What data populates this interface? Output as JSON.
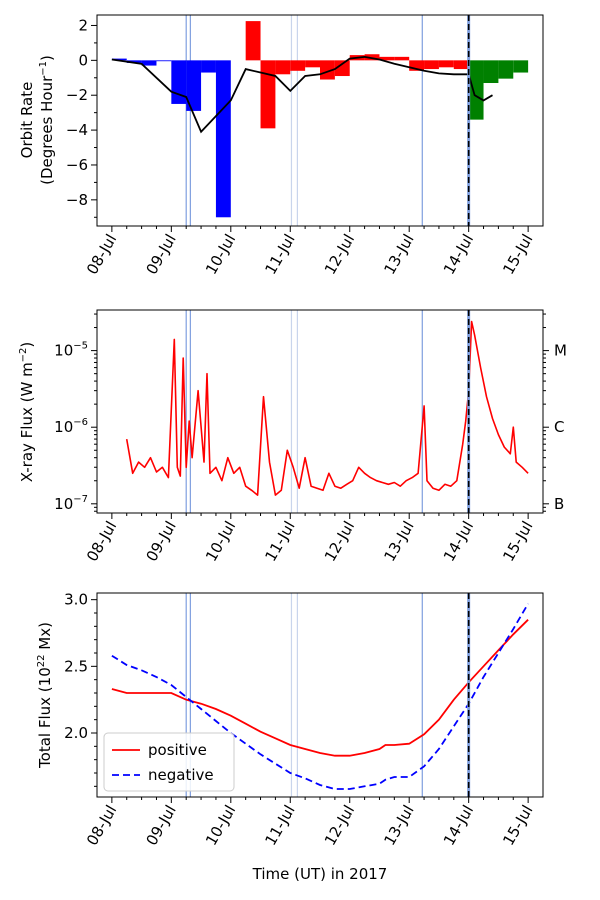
{
  "chart_data": [
    {
      "type": "bar",
      "ylabel_line1": "Orbit Rate",
      "ylabel_line2": "(Degrees Hour",
      "ylabel_sup": "−1",
      "ylabel_close": ")",
      "xtick_labels": [
        "08-Jul",
        "09-Jul",
        "10-Jul",
        "11-Jul",
        "12-Jul",
        "13-Jul",
        "14-Jul",
        "15-Jul"
      ],
      "ytick_labels": [
        "2",
        "0",
        "−2",
        "−4",
        "−6",
        "−8"
      ],
      "ytick_values": [
        2,
        0,
        -2,
        -4,
        -6,
        -8
      ],
      "xlim": [
        7.75,
        15.25
      ],
      "ylim": [
        -9.5,
        2.6
      ],
      "colors": {
        "blue": "#0000ff",
        "red": "#ff0000",
        "green": "#008000",
        "line": "#000000"
      },
      "bars": [
        {
          "x0": 8.0,
          "x1": 8.25,
          "value": 0.1,
          "color": "blue"
        },
        {
          "x0": 8.25,
          "x1": 8.5,
          "value": -0.15,
          "color": "blue"
        },
        {
          "x0": 8.5,
          "x1": 8.75,
          "value": -0.3,
          "color": "blue"
        },
        {
          "x0": 8.75,
          "x1": 9.0,
          "value": -0.05,
          "color": "blue"
        },
        {
          "x0": 9.0,
          "x1": 9.25,
          "value": -2.5,
          "color": "blue"
        },
        {
          "x0": 9.25,
          "x1": 9.5,
          "value": -2.9,
          "color": "blue"
        },
        {
          "x0": 9.5,
          "x1": 9.75,
          "value": -0.7,
          "color": "blue"
        },
        {
          "x0": 9.75,
          "x1": 10.0,
          "value": -9.0,
          "color": "blue"
        },
        {
          "x0": 10.25,
          "x1": 10.5,
          "value": 2.25,
          "color": "red"
        },
        {
          "x0": 10.5,
          "x1": 10.75,
          "value": -3.9,
          "color": "red"
        },
        {
          "x0": 10.75,
          "x1": 11.0,
          "value": -0.8,
          "color": "red"
        },
        {
          "x0": 11.0,
          "x1": 11.25,
          "value": -0.6,
          "color": "red"
        },
        {
          "x0": 11.25,
          "x1": 11.5,
          "value": -0.4,
          "color": "red"
        },
        {
          "x0": 11.5,
          "x1": 11.75,
          "value": -1.1,
          "color": "red"
        },
        {
          "x0": 11.75,
          "x1": 12.0,
          "value": -0.9,
          "color": "red"
        },
        {
          "x0": 12.0,
          "x1": 12.25,
          "value": 0.3,
          "color": "red"
        },
        {
          "x0": 12.25,
          "x1": 12.5,
          "value": 0.35,
          "color": "red"
        },
        {
          "x0": 12.5,
          "x1": 12.75,
          "value": 0.2,
          "color": "red"
        },
        {
          "x0": 12.75,
          "x1": 13.0,
          "value": 0.2,
          "color": "red"
        },
        {
          "x0": 13.0,
          "x1": 13.25,
          "value": -0.6,
          "color": "red"
        },
        {
          "x0": 13.25,
          "x1": 13.5,
          "value": -0.5,
          "color": "red"
        },
        {
          "x0": 13.5,
          "x1": 13.75,
          "value": -0.4,
          "color": "red"
        },
        {
          "x0": 13.75,
          "x1": 14.0,
          "value": -0.5,
          "color": "red"
        },
        {
          "x0": 14.0,
          "x1": 14.25,
          "value": -3.4,
          "color": "green"
        },
        {
          "x0": 14.25,
          "x1": 14.5,
          "value": -1.3,
          "color": "green"
        },
        {
          "x0": 14.5,
          "x1": 14.75,
          "value": -1.05,
          "color": "green"
        },
        {
          "x0": 14.75,
          "x1": 15.0,
          "value": -0.7,
          "color": "green"
        }
      ],
      "line_x": [
        8.0,
        8.5,
        9.0,
        9.25,
        9.5,
        9.75,
        10.0,
        10.25,
        10.5,
        10.75,
        11.0,
        11.25,
        11.5,
        11.75,
        12.0,
        12.25,
        12.5,
        12.75,
        13.0,
        13.25,
        13.5,
        13.75,
        14.0,
        14.1,
        14.25,
        14.4
      ],
      "line_y": [
        0.05,
        -0.2,
        -1.8,
        -2.1,
        -4.1,
        -3.2,
        -2.3,
        -0.5,
        -0.7,
        -0.9,
        -1.75,
        -0.9,
        -0.8,
        -0.5,
        0.1,
        0.2,
        0.05,
        -0.2,
        -0.4,
        -0.6,
        -0.75,
        -0.8,
        -0.8,
        -2.0,
        -2.3,
        -2.0
      ]
    },
    {
      "type": "line",
      "yscale": "log",
      "ylabel": "X-ray Flux (W m",
      "ylabel_sup": "−2",
      "ylabel_close": ")",
      "xtick_labels": [
        "08-Jul",
        "09-Jul",
        "10-Jul",
        "11-Jul",
        "12-Jul",
        "13-Jul",
        "14-Jul",
        "15-Jul"
      ],
      "ytick_labels": [
        {
          "base": "10",
          "exp": "−5"
        },
        {
          "base": "10",
          "exp": "−6"
        },
        {
          "base": "10",
          "exp": "−7"
        }
      ],
      "right_labels": [
        {
          "label": "M",
          "value": 1e-05
        },
        {
          "label": "C",
          "value": 1e-06
        },
        {
          "label": "B",
          "value": 1e-07
        }
      ],
      "xlim": [
        7.75,
        15.25
      ],
      "ylim_log10": [
        -7.12,
        -4.47
      ],
      "color": "#ff0000",
      "series_x": [
        8.25,
        8.35,
        8.45,
        8.55,
        8.65,
        8.75,
        8.85,
        8.95,
        9.05,
        9.1,
        9.15,
        9.2,
        9.25,
        9.3,
        9.35,
        9.45,
        9.55,
        9.6,
        9.65,
        9.75,
        9.85,
        9.95,
        10.05,
        10.15,
        10.25,
        10.35,
        10.45,
        10.55,
        10.65,
        10.75,
        10.85,
        10.95,
        11.05,
        11.15,
        11.25,
        11.35,
        11.45,
        11.55,
        11.65,
        11.75,
        11.85,
        11.95,
        12.05,
        12.15,
        12.25,
        12.35,
        12.45,
        12.55,
        12.65,
        12.75,
        12.85,
        12.95,
        13.05,
        13.15,
        13.25,
        13.3,
        13.4,
        13.5,
        13.6,
        13.7,
        13.8,
        13.9,
        13.95,
        14.0,
        14.05,
        14.1,
        14.2,
        14.3,
        14.4,
        14.5,
        14.6,
        14.7,
        14.75,
        14.8,
        14.9,
        15.0
      ],
      "series_y": [
        7e-07,
        2.5e-07,
        3.5e-07,
        3e-07,
        4e-07,
        2.6e-07,
        3e-07,
        2.2e-07,
        1.4e-05,
        3e-07,
        2.3e-07,
        8e-06,
        3e-07,
        1.2e-06,
        4e-07,
        3e-06,
        3.5e-07,
        5e-06,
        2.5e-07,
        3e-07,
        2e-07,
        4e-07,
        2.5e-07,
        3e-07,
        1.7e-07,
        1.5e-07,
        1.3e-07,
        2.5e-06,
        3.5e-07,
        1.3e-07,
        1.5e-07,
        5e-07,
        3e-07,
        1.6e-07,
        4e-07,
        1.7e-07,
        1.6e-07,
        1.5e-07,
        2.5e-07,
        1.7e-07,
        1.6e-07,
        1.8e-07,
        2e-07,
        3e-07,
        2.5e-07,
        2.2e-07,
        2e-07,
        1.9e-07,
        1.8e-07,
        1.9e-07,
        1.7e-07,
        2e-07,
        2.2e-07,
        2.5e-07,
        1.9e-06,
        2e-07,
        1.6e-07,
        1.5e-07,
        1.8e-07,
        1.7e-07,
        2e-07,
        6e-07,
        1.2e-06,
        3e-06,
        2.4e-05,
        1.6e-05,
        6e-06,
        2.5e-06,
        1.3e-06,
        8e-07,
        5.5e-07,
        4.5e-07,
        1e-06,
        3.5e-07,
        3e-07,
        2.5e-07
      ]
    },
    {
      "type": "line",
      "ylabel": "Total Flux (10",
      "ylabel_sup": "22",
      "ylabel_close": " Mx)",
      "xlabel": "Time (UT) in 2017",
      "xtick_labels": [
        "08-Jul",
        "09-Jul",
        "10-Jul",
        "11-Jul",
        "12-Jul",
        "13-Jul",
        "14-Jul",
        "15-Jul"
      ],
      "ytick_labels": [
        "3.0",
        "2.5",
        "2.0"
      ],
      "ytick_values": [
        3.0,
        2.5,
        2.0
      ],
      "xlim": [
        7.75,
        15.25
      ],
      "ylim": [
        1.52,
        3.05
      ],
      "legend_position": "lower-left",
      "series": [
        {
          "name": "positive",
          "color": "#ff0000",
          "style": "solid",
          "x": [
            8.0,
            8.25,
            8.5,
            8.75,
            9.0,
            9.25,
            9.5,
            9.75,
            10.0,
            10.25,
            10.5,
            10.75,
            11.0,
            11.25,
            11.5,
            11.75,
            12.0,
            12.25,
            12.5,
            12.6,
            12.75,
            13.0,
            13.25,
            13.5,
            13.75,
            14.0,
            14.25,
            14.5,
            14.75,
            15.0
          ],
          "y": [
            2.33,
            2.3,
            2.3,
            2.3,
            2.3,
            2.25,
            2.22,
            2.18,
            2.13,
            2.07,
            2.01,
            1.96,
            1.91,
            1.88,
            1.85,
            1.83,
            1.83,
            1.85,
            1.88,
            1.91,
            1.91,
            1.92,
            1.99,
            2.1,
            2.25,
            2.38,
            2.5,
            2.62,
            2.74,
            2.85
          ]
        },
        {
          "name": "negative",
          "color": "#0000ff",
          "style": "dashed",
          "x": [
            8.0,
            8.25,
            8.5,
            8.75,
            9.0,
            9.25,
            9.5,
            9.75,
            10.0,
            10.25,
            10.5,
            10.75,
            11.0,
            11.25,
            11.5,
            11.75,
            12.0,
            12.25,
            12.5,
            12.6,
            12.75,
            13.0,
            13.25,
            13.5,
            13.75,
            14.0,
            14.25,
            14.5,
            14.75,
            15.0
          ],
          "y": [
            2.58,
            2.51,
            2.47,
            2.42,
            2.36,
            2.27,
            2.18,
            2.09,
            2.0,
            1.92,
            1.84,
            1.77,
            1.7,
            1.66,
            1.61,
            1.58,
            1.58,
            1.6,
            1.62,
            1.65,
            1.67,
            1.67,
            1.75,
            1.88,
            2.05,
            2.22,
            2.42,
            2.6,
            2.78,
            2.97
          ]
        }
      ]
    }
  ],
  "event_lines": {
    "light_blue": [
      9.25,
      9.32,
      13.22
    ],
    "faint": [
      11.02,
      11.12
    ],
    "dashed_black": [
      14.0
    ],
    "colors": {
      "light_blue": "#7f9fdf",
      "faint": "#c9d5ec",
      "outline": "#000000"
    }
  }
}
